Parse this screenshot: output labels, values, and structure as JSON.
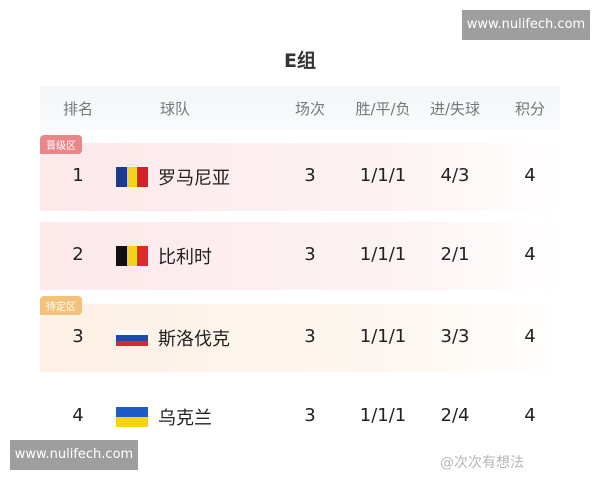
{
  "watermark_top": "www.nulifech.com",
  "watermark_bottom": "www.nulifech.com",
  "watermark_author": "@次次有想法",
  "title": "E组",
  "headers": [
    "排名",
    "球队",
    "场次",
    "胜/平/负",
    "进/失球",
    "积分"
  ],
  "zones": {
    "qualified": {
      "label": "晋级区",
      "color": "#e8868a"
    },
    "pending": {
      "label": "待定区",
      "color": "#f2c27a"
    }
  },
  "rows": [
    {
      "rank": "1",
      "team": "罗马尼亚",
      "flag": "romania-flag",
      "played": "3",
      "wdl": "1/1/1",
      "goals": "4/3",
      "points": "4"
    },
    {
      "rank": "2",
      "team": "比利时",
      "flag": "belgium-flag",
      "played": "3",
      "wdl": "1/1/1",
      "goals": "2/1",
      "points": "4"
    },
    {
      "rank": "3",
      "team": "斯洛伐克",
      "flag": "slovakia-flag",
      "played": "3",
      "wdl": "1/1/1",
      "goals": "3/3",
      "points": "4"
    },
    {
      "rank": "4",
      "team": "乌克兰",
      "flag": "ukraine-flag",
      "played": "3",
      "wdl": "1/1/1",
      "goals": "2/4",
      "points": "4"
    }
  ]
}
